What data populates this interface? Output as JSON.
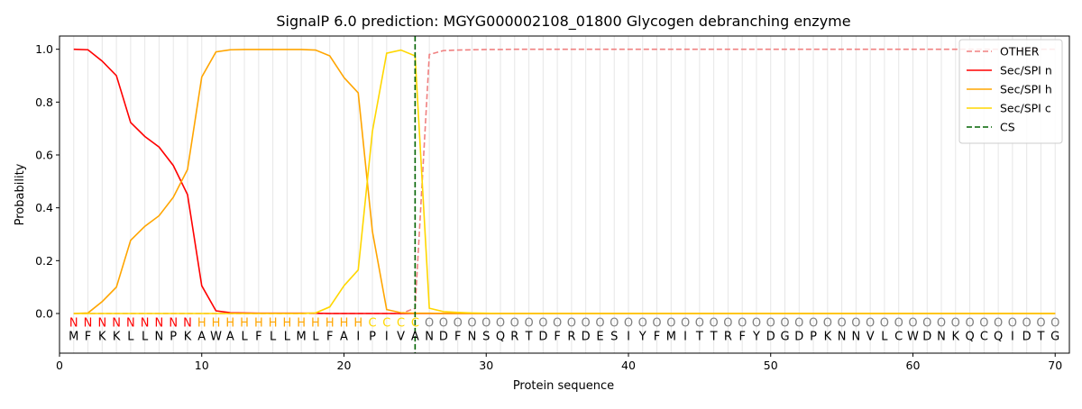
{
  "chart_data": {
    "type": "line",
    "title": "SignalP 6.0 prediction: MGYG000002108_01800 Glycogen debranching enzyme",
    "xlabel": "Protein sequence",
    "ylabel": "Probability",
    "xlim": [
      0,
      71
    ],
    "ylim": [
      -0.15,
      1.05
    ],
    "x_ticks": [
      0,
      10,
      20,
      30,
      40,
      50,
      60,
      70
    ],
    "y_ticks": [
      0.0,
      0.2,
      0.4,
      0.6,
      0.8,
      1.0
    ],
    "x_tick_labels": [
      "0",
      "10",
      "20",
      "30",
      "40",
      "50",
      "60",
      "70"
    ],
    "y_tick_labels": [
      "0.0",
      "0.2",
      "0.4",
      "0.6",
      "0.8",
      "1.0"
    ],
    "vertical_grid": true,
    "legend_position": "top-right",
    "sequence": [
      "M",
      "F",
      "K",
      "K",
      "L",
      "L",
      "N",
      "P",
      "K",
      "A",
      "W",
      "A",
      "L",
      "F",
      "L",
      "L",
      "M",
      "L",
      "F",
      "A",
      "I",
      "P",
      "I",
      "V",
      "A",
      "N",
      "D",
      "F",
      "N",
      "S",
      "Q",
      "R",
      "T",
      "D",
      "F",
      "R",
      "D",
      "E",
      "S",
      "I",
      "Y",
      "F",
      "M",
      "I",
      "T",
      "T",
      "R",
      "F",
      "Y",
      "D",
      "G",
      "D",
      "P",
      "K",
      "N",
      "N",
      "V",
      "L",
      "C",
      "W",
      "D",
      "N",
      "K",
      "Q",
      "C",
      "Q",
      "I",
      "D",
      "T",
      "G"
    ],
    "labels": [
      "N",
      "N",
      "N",
      "N",
      "N",
      "N",
      "N",
      "N",
      "N",
      "H",
      "H",
      "H",
      "H",
      "H",
      "H",
      "H",
      "H",
      "H",
      "H",
      "H",
      "H",
      "C",
      "C",
      "C",
      "C",
      "O",
      "O",
      "O",
      "O",
      "O",
      "O",
      "O",
      "O",
      "O",
      "O",
      "O",
      "O",
      "O",
      "O",
      "O",
      "O",
      "O",
      "O",
      "O",
      "O",
      "O",
      "O",
      "O",
      "O",
      "O",
      "O",
      "O",
      "O",
      "O",
      "O",
      "O",
      "O",
      "O",
      "O",
      "O",
      "O",
      "O",
      "O",
      "O",
      "O",
      "O",
      "O",
      "O",
      "O",
      "O"
    ],
    "label_colors": {
      "N": "#ff0000",
      "H": "#ffa500",
      "C": "#ffd700",
      "O": "#808080"
    },
    "cs_position": 25,
    "series": [
      {
        "name": "OTHER",
        "color": "#f08080",
        "dash": true,
        "values": [
          0,
          0,
          0,
          0,
          0,
          0,
          0,
          0,
          0,
          0,
          0,
          0,
          0,
          0,
          0,
          0,
          0,
          0,
          0,
          0,
          0,
          0,
          0,
          0,
          0.02,
          0.98,
          0.995,
          0.997,
          0.998,
          0.999,
          0.999,
          1,
          1,
          1,
          1,
          1,
          1,
          1,
          1,
          1,
          1,
          1,
          1,
          1,
          1,
          1,
          1,
          1,
          1,
          1,
          1,
          1,
          1,
          1,
          1,
          1,
          1,
          1,
          1,
          1,
          1,
          1,
          1,
          1,
          1,
          1,
          1,
          1,
          1,
          1
        ]
      },
      {
        "name": "Sec/SPI n",
        "color": "#ff0000",
        "dash": false,
        "values": [
          1.0,
          0.998,
          0.955,
          0.9,
          0.723,
          0.67,
          0.63,
          0.56,
          0.45,
          0.105,
          0.01,
          0.003,
          0.002,
          0.001,
          0.001,
          0.001,
          0.001,
          0.001,
          0,
          0,
          0,
          0,
          0,
          0,
          0,
          0,
          0,
          0,
          0,
          0,
          0,
          0,
          0,
          0,
          0,
          0,
          0,
          0,
          0,
          0,
          0,
          0,
          0,
          0,
          0,
          0,
          0,
          0,
          0,
          0,
          0,
          0,
          0,
          0,
          0,
          0,
          0,
          0,
          0,
          0,
          0,
          0,
          0,
          0,
          0,
          0,
          0,
          0,
          0,
          0
        ]
      },
      {
        "name": "Sec/SPI h",
        "color": "#ffa500",
        "dash": false,
        "values": [
          0,
          0.002,
          0.045,
          0.1,
          0.277,
          0.33,
          0.37,
          0.44,
          0.545,
          0.895,
          0.99,
          0.998,
          0.999,
          0.999,
          0.999,
          0.999,
          0.999,
          0.997,
          0.975,
          0.893,
          0.835,
          0.31,
          0.015,
          0.003,
          0.001,
          0.001,
          0,
          0,
          0,
          0,
          0,
          0,
          0,
          0,
          0,
          0,
          0,
          0,
          0,
          0,
          0,
          0,
          0,
          0,
          0,
          0,
          0,
          0,
          0,
          0,
          0,
          0,
          0,
          0,
          0,
          0,
          0,
          0,
          0,
          0,
          0,
          0,
          0,
          0,
          0,
          0,
          0,
          0,
          0,
          0
        ]
      },
      {
        "name": "Sec/SPI c",
        "color": "#ffd700",
        "dash": false,
        "values": [
          0,
          0,
          0,
          0,
          0,
          0,
          0,
          0,
          0,
          0,
          0,
          0,
          0,
          0,
          0,
          0,
          0,
          0.002,
          0.025,
          0.105,
          0.165,
          0.69,
          0.985,
          0.997,
          0.975,
          0.02,
          0.007,
          0.004,
          0.002,
          0.001,
          0,
          0,
          0,
          0,
          0,
          0,
          0,
          0,
          0,
          0,
          0,
          0,
          0,
          0,
          0,
          0,
          0,
          0,
          0,
          0,
          0,
          0,
          0,
          0,
          0,
          0,
          0,
          0,
          0,
          0,
          0,
          0,
          0,
          0,
          0,
          0,
          0,
          0,
          0,
          0
        ]
      }
    ],
    "cs_legend_label": "CS",
    "cs_color": "#006400"
  }
}
